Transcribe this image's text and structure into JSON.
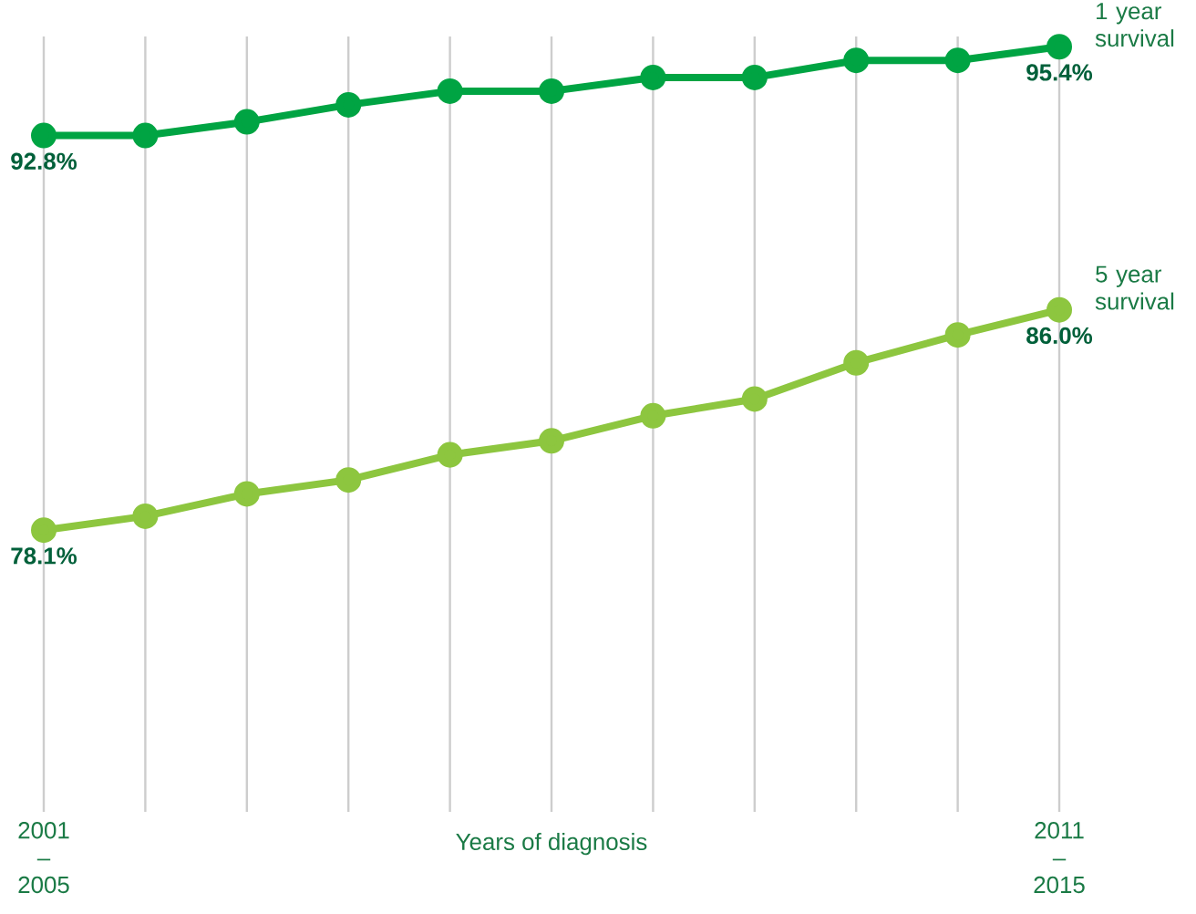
{
  "chart_data": {
    "type": "line",
    "xlabel": "Years of diagnosis",
    "categories": [
      "2001 – 2005",
      null,
      null,
      null,
      null,
      null,
      null,
      null,
      null,
      null,
      "2011 – 2015"
    ],
    "series": [
      {
        "name": "1 year survival",
        "color": "#00a443",
        "values": [
          92.8,
          92.8,
          93.2,
          93.7,
          94.1,
          94.1,
          94.5,
          94.5,
          95.0,
          95.0,
          95.4
        ],
        "value_labels": [
          "92.8%",
          null,
          null,
          null,
          null,
          null,
          null,
          null,
          null,
          null,
          "95.4%"
        ]
      },
      {
        "name": "5 year survival",
        "color": "#8dc63f",
        "axis": "y2",
        "values": [
          78.1,
          78.6,
          79.4,
          79.9,
          80.8,
          81.3,
          82.2,
          82.8,
          84.1,
          85.1,
          86.0
        ],
        "value_labels": [
          "78.1%",
          null,
          null,
          null,
          null,
          null,
          null,
          null,
          null,
          null,
          "86.0%"
        ]
      }
    ],
    "ylim": [
      73,
      95.7
    ],
    "y2lim": [
      68,
      95.8
    ],
    "grid": "x",
    "legend": false,
    "marker": "circle",
    "line_style": "solid",
    "tick_labels": "x"
  }
}
